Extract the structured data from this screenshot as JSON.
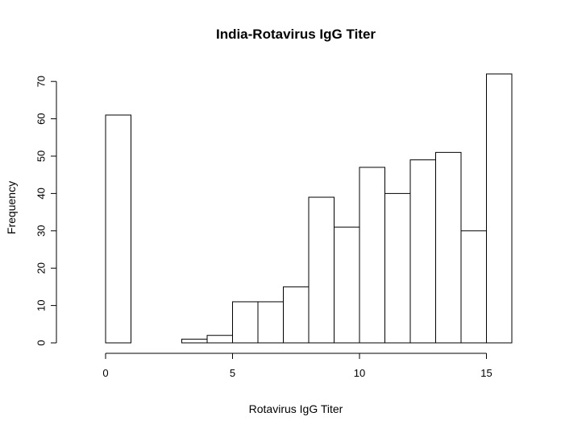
{
  "chart_data": {
    "type": "bar",
    "title": "India-Rotavirus IgG Titer",
    "xlabel": "Rotavirus IgG Titer",
    "ylabel": "Frequency",
    "bins": [
      [
        0,
        1
      ],
      [
        1,
        2
      ],
      [
        2,
        3
      ],
      [
        3,
        4
      ],
      [
        4,
        5
      ],
      [
        5,
        6
      ],
      [
        6,
        7
      ],
      [
        7,
        8
      ],
      [
        8,
        9
      ],
      [
        9,
        10
      ],
      [
        10,
        11
      ],
      [
        11,
        12
      ],
      [
        12,
        13
      ],
      [
        13,
        14
      ],
      [
        14,
        15
      ],
      [
        15,
        16
      ]
    ],
    "values": [
      61,
      0,
      0,
      1,
      2,
      11,
      11,
      15,
      39,
      31,
      47,
      40,
      49,
      51,
      30,
      72
    ],
    "xlim": [
      0,
      16
    ],
    "ylim": [
      0,
      72
    ],
    "xticks": [
      "0",
      "5",
      "10",
      "15"
    ],
    "yticks": [
      "0",
      "10",
      "20",
      "30",
      "40",
      "50",
      "60",
      "70"
    ],
    "grid": false,
    "bar_fill": "#ffffff",
    "bar_stroke": "#000000"
  }
}
